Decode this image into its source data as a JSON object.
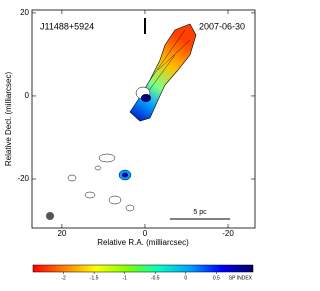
{
  "chart_data": {
    "type": "image",
    "annotations": [
      "J11488+5924",
      "2007-06-30",
      "5 pc"
    ],
    "xlabel": "Relative R.A. (milliarcsec)",
    "ylabel": "Relative Decl. (milliarcsec)",
    "xlim": [
      27.2,
      -26.5
    ],
    "xticks": [
      20,
      0,
      -20
    ],
    "ylim": [
      -31.8,
      20.7
    ],
    "yticks": [
      20,
      0,
      -20
    ],
    "colorbar": {
      "label": "SP INDEX",
      "lim": [
        -2.5,
        1.1
      ],
      "ticks": [
        -2,
        -1.5,
        -1,
        -0.5,
        0,
        0.5
      ],
      "colors": [
        "#ff0000",
        "#ff8000",
        "#ffff00",
        "#80ff00",
        "#00ffc0",
        "#00a0ff",
        "#0000ff",
        "#000060"
      ]
    }
  }
}
